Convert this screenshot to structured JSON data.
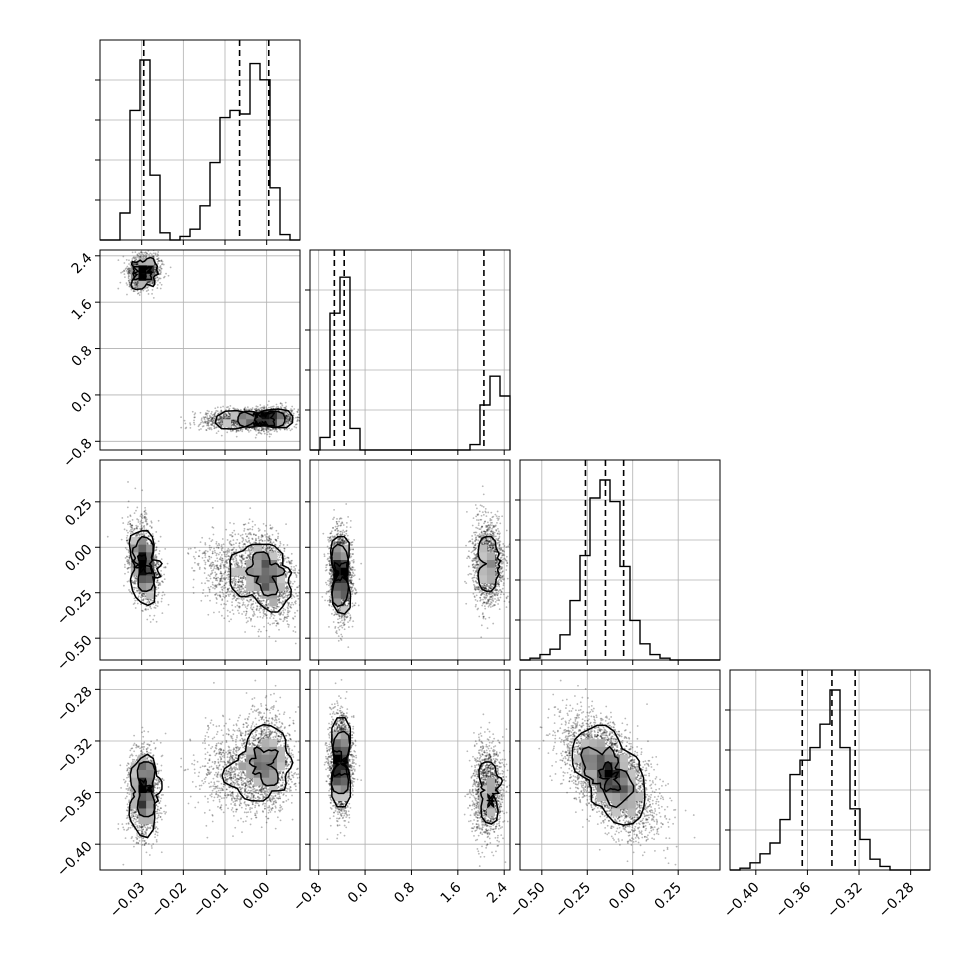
{
  "chart_data": {
    "type": "corner",
    "parameters": 4,
    "quantile_levels": [
      0.16,
      0.5,
      0.84
    ],
    "grid": true,
    "colors": {
      "ink": "#000000",
      "grid": "#b0b0b0",
      "background": "#ffffff"
    },
    "axes": [
      {
        "index": 0,
        "range": [
          -0.04,
          0.008
        ],
        "ticks": [
          -0.03,
          -0.02,
          -0.01,
          0.0
        ],
        "tick_labels": [
          "−0.03",
          "−0.02",
          "−0.01",
          "0.00"
        ],
        "quantiles": [
          -0.0295,
          -0.0065,
          0.0005
        ],
        "modes": [
          {
            "mean": -0.0295,
            "sd": 0.0018,
            "weight": 0.37
          },
          {
            "mean": -0.0055,
            "sd": 0.005,
            "weight": 0.3
          },
          {
            "mean": 0.0005,
            "sd": 0.0028,
            "weight": 0.33
          }
        ]
      },
      {
        "index": 1,
        "range": [
          -0.95,
          2.5
        ],
        "ticks": [
          -0.8,
          0.0,
          0.8,
          1.6,
          2.4
        ],
        "tick_labels": [
          "−0.8",
          "0.0",
          "0.8",
          "1.6",
          "2.4"
        ],
        "quantiles": [
          -0.53,
          -0.36,
          2.05
        ],
        "modes": [
          {
            "mean": -0.42,
            "sd": 0.09,
            "weight": 0.63
          },
          {
            "mean": 2.12,
            "sd": 0.13,
            "weight": 0.37
          }
        ]
      },
      {
        "index": 2,
        "range": [
          -0.62,
          0.48
        ],
        "ticks": [
          -0.5,
          -0.25,
          0.0,
          0.25
        ],
        "tick_labels": [
          "−0.50",
          "−0.25",
          "0.00",
          "0.25"
        ],
        "quantiles": [
          -0.26,
          -0.15,
          -0.05
        ],
        "modes": [
          {
            "mean": -0.14,
            "sd": 0.11,
            "weight": 1.0
          }
        ]
      },
      {
        "index": 3,
        "range": [
          -0.42,
          -0.265
        ],
        "ticks": [
          -0.4,
          -0.36,
          -0.32,
          -0.28
        ],
        "tick_labels": [
          "−0.40",
          "−0.36",
          "−0.32",
          "−0.28"
        ],
        "quantiles": [
          -0.364,
          -0.341,
          -0.323
        ],
        "modes": [
          {
            "mean": -0.342,
            "sd": 0.02,
            "weight": 1.0
          }
        ]
      }
    ],
    "histograms": [
      {
        "param": 0,
        "bins": 20,
        "relative_heights": [
          0.0,
          0.0,
          0.15,
          0.72,
          1.0,
          0.36,
          0.04,
          0.0,
          0.02,
          0.06,
          0.19,
          0.43,
          0.68,
          0.72,
          0.7,
          0.98,
          0.89,
          0.29,
          0.03,
          0.0
        ]
      },
      {
        "param": 1,
        "bins": 20,
        "relative_heights": [
          0.0,
          0.07,
          0.76,
          0.96,
          0.12,
          0.0,
          0.0,
          0.0,
          0.0,
          0.0,
          0.0,
          0.0,
          0.0,
          0.0,
          0.0,
          0.0,
          0.03,
          0.25,
          0.41,
          0.3
        ]
      },
      {
        "param": 2,
        "bins": 20,
        "relative_heights": [
          0.0,
          0.01,
          0.03,
          0.06,
          0.14,
          0.33,
          0.58,
          0.9,
          1.0,
          0.88,
          0.52,
          0.22,
          0.09,
          0.03,
          0.01,
          0.0,
          0.0,
          0.0,
          0.0,
          0.0
        ]
      },
      {
        "param": 3,
        "bins": 20,
        "relative_heights": [
          0.0,
          0.01,
          0.04,
          0.09,
          0.15,
          0.28,
          0.53,
          0.61,
          0.68,
          0.81,
          1.0,
          0.68,
          0.34,
          0.17,
          0.06,
          0.02,
          0.0,
          0.0,
          0.0,
          0.0
        ]
      }
    ],
    "scatter_pairs": [
      {
        "x_param": 0,
        "y_param": 1,
        "note": "x-mode 0 pairs with y-mode 1, x-modes 1-2 pair with y-mode 0"
      },
      {
        "x_param": 0,
        "y_param": 2
      },
      {
        "x_param": 1,
        "y_param": 2
      },
      {
        "x_param": 0,
        "y_param": 3
      },
      {
        "x_param": 1,
        "y_param": 3
      },
      {
        "x_param": 2,
        "y_param": 3,
        "correlation": -0.55
      }
    ]
  }
}
